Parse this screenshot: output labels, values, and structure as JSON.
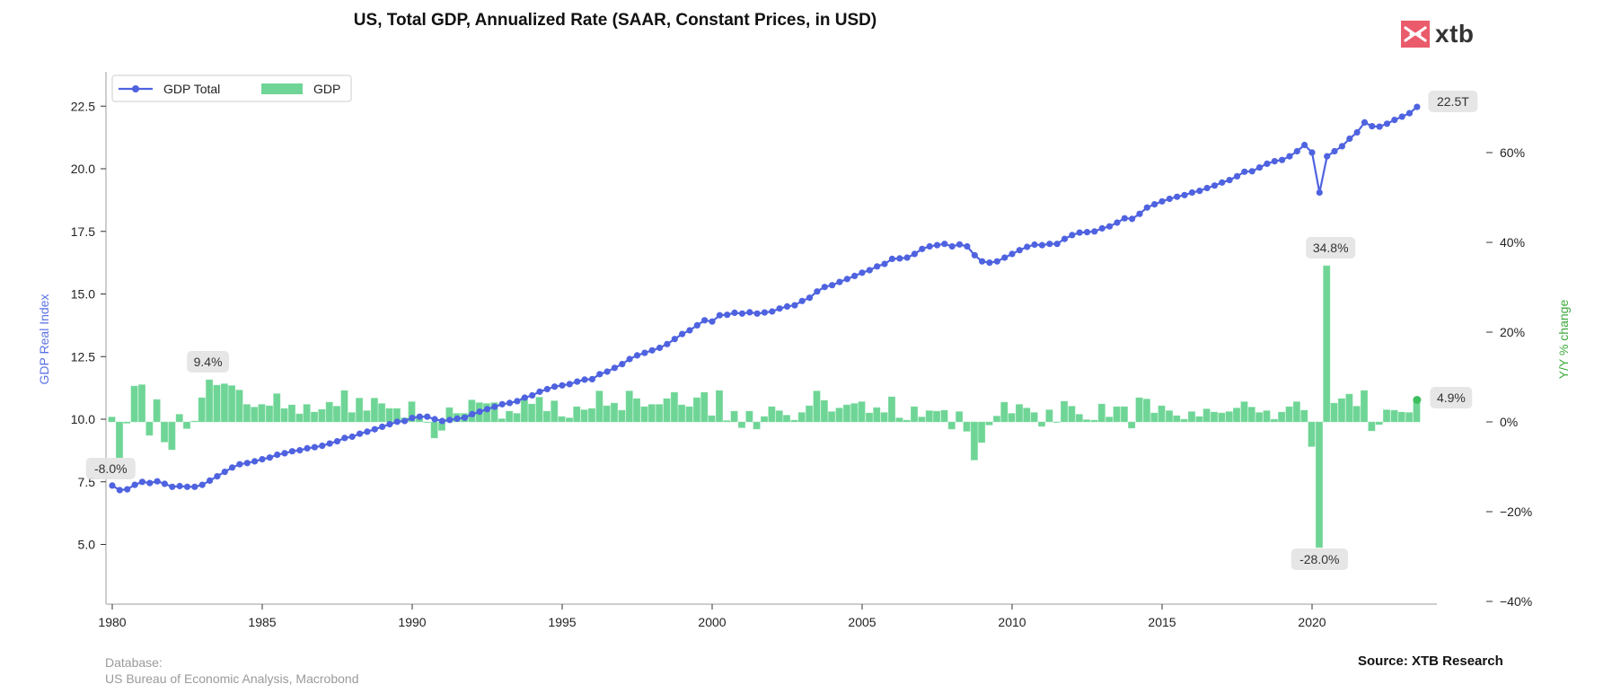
{
  "header": {
    "title": "US, Total GDP, Annualized Rate (SAAR, Constant Prices, in USD)",
    "logo_text": "xtb",
    "logo_icon": "xtb-x-icon",
    "logo_color": "#ea5b6b"
  },
  "footer": {
    "database_label": "Database:",
    "database_source": "US Bureau of Economic Analysis, Macrobond",
    "source": "Source: XTB Research"
  },
  "chart_data": {
    "type": "bar+line",
    "title": "US, Total GDP, Annualized Rate (SAAR, Constant Prices, in USD)",
    "xlabel": "",
    "ylabel_left": "GDP Real Index",
    "ylabel_right": "Y/Y % change",
    "x_ticks": [
      "1980",
      "1985",
      "1990",
      "1995",
      "2000",
      "2005",
      "2010",
      "2015",
      "2020"
    ],
    "y_left_ticks": [
      "5.0",
      "7.5",
      "10.0",
      "12.5",
      "15.0",
      "17.5",
      "20.0",
      "22.5"
    ],
    "y_right_ticks": [
      "−40%",
      "−20%",
      "0%",
      "20%",
      "40%",
      "60%"
    ],
    "y_left_range": [
      2.6,
      23.9
    ],
    "y_right_range": [
      -40.6,
      78
    ],
    "x_range": [
      1979.97,
      2023.95
    ],
    "grid": false,
    "legend": {
      "placement": "top-left",
      "entries": [
        "GDP Total",
        "GDP"
      ]
    },
    "colors": {
      "line": "#4f63e0",
      "bars": "#6fd596",
      "last_bar_dot": "#3dbf5f",
      "annotation_bg": "#e4e4e4"
    },
    "start_year": 1980,
    "frequency": "quarterly",
    "series": [
      {
        "name": "GDP Total",
        "axis": "left",
        "kind": "line",
        "values": [
          7.35,
          7.17,
          7.2,
          7.38,
          7.5,
          7.45,
          7.52,
          7.42,
          7.3,
          7.33,
          7.3,
          7.3,
          7.38,
          7.55,
          7.72,
          7.9,
          8.07,
          8.2,
          8.25,
          8.32,
          8.4,
          8.47,
          8.58,
          8.64,
          8.72,
          8.76,
          8.84,
          8.88,
          8.94,
          9.03,
          9.12,
          9.25,
          9.3,
          9.42,
          9.5,
          9.6,
          9.7,
          9.8,
          9.9,
          9.93,
          10.05,
          10.1,
          10.1,
          10.0,
          9.93,
          9.97,
          10.02,
          10.06,
          10.2,
          10.3,
          10.4,
          10.5,
          10.6,
          10.65,
          10.72,
          10.86,
          10.95,
          11.1,
          11.2,
          11.3,
          11.35,
          11.4,
          11.5,
          11.58,
          11.6,
          11.8,
          11.9,
          12.05,
          12.2,
          12.4,
          12.55,
          12.65,
          12.75,
          12.85,
          13.0,
          13.2,
          13.4,
          13.55,
          13.75,
          13.95,
          13.9,
          14.15,
          14.17,
          14.25,
          14.22,
          14.27,
          14.22,
          14.26,
          14.3,
          14.42,
          14.5,
          14.55,
          14.72,
          14.85,
          15.1,
          15.28,
          15.35,
          15.48,
          15.6,
          15.72,
          15.85,
          15.95,
          16.1,
          16.2,
          16.4,
          16.42,
          16.45,
          16.6,
          16.8,
          16.9,
          16.95,
          17.0,
          16.9,
          16.98,
          16.9,
          16.55,
          16.3,
          16.25,
          16.3,
          16.45,
          16.6,
          16.75,
          16.88,
          16.97,
          16.95,
          17.0,
          17.0,
          17.2,
          17.35,
          17.45,
          17.47,
          17.5,
          17.62,
          17.7,
          17.85,
          18.02,
          18.0,
          18.2,
          18.45,
          18.58,
          18.7,
          18.8,
          18.88,
          18.95,
          19.05,
          19.12,
          19.23,
          19.33,
          19.45,
          19.55,
          19.7,
          19.88,
          19.9,
          20.05,
          20.2,
          20.3,
          20.35,
          20.5,
          20.7,
          20.95,
          20.65,
          19.05,
          20.5,
          20.7,
          20.9,
          21.2,
          21.45,
          21.85,
          21.7,
          21.68,
          21.8,
          21.95,
          22.08,
          22.22,
          22.47
        ]
      },
      {
        "name": "GDP",
        "axis": "right",
        "kind": "bar",
        "unit": "%",
        "values": [
          1.1,
          -8.0,
          -0.3,
          8.0,
          8.3,
          -3.0,
          5.0,
          -4.5,
          -6.2,
          1.7,
          -1.5,
          0.2,
          5.4,
          9.4,
          8.2,
          8.5,
          8.1,
          7.1,
          3.9,
          3.3,
          3.9,
          3.6,
          6.3,
          3.0,
          3.8,
          1.8,
          3.9,
          2.2,
          2.8,
          4.4,
          3.5,
          7.0,
          2.1,
          5.3,
          2.5,
          5.3,
          4.1,
          3.0,
          3.0,
          0.9,
          4.5,
          1.3,
          0.0,
          -3.6,
          -1.9,
          3.2,
          1.9,
          1.9,
          4.9,
          4.3,
          4.1,
          4.3,
          0.7,
          2.4,
          1.9,
          5.5,
          4.0,
          5.5,
          2.4,
          4.7,
          1.2,
          0.9,
          3.4,
          2.7,
          3.0,
          6.9,
          3.6,
          4.2,
          2.6,
          6.9,
          5.2,
          3.4,
          3.9,
          3.9,
          5.2,
          6.6,
          3.8,
          3.4,
          5.4,
          6.6,
          1.4,
          7.0,
          0.3,
          2.4,
          -1.3,
          2.4,
          -1.6,
          1.2,
          3.4,
          2.5,
          1.5,
          0.4,
          2.1,
          3.6,
          6.9,
          4.8,
          2.3,
          3.1,
          3.8,
          4.1,
          4.5,
          2.0,
          3.2,
          2.1,
          5.6,
          0.9,
          0.4,
          3.4,
          1.1,
          2.5,
          2.4,
          2.6,
          -1.6,
          2.3,
          -2.1,
          -8.5,
          -4.6,
          -0.7,
          1.3,
          4.4,
          1.9,
          3.9,
          3.1,
          2.1,
          -1.0,
          2.7,
          -0.1,
          4.6,
          3.5,
          1.7,
          0.5,
          0.4,
          4.0,
          1.1,
          3.4,
          3.4,
          -1.4,
          5.4,
          5.1,
          2.0,
          3.6,
          2.5,
          1.4,
          0.6,
          2.3,
          1.2,
          2.9,
          2.2,
          2.0,
          2.3,
          3.1,
          4.5,
          3.3,
          2.1,
          2.5,
          0.6,
          2.2,
          3.4,
          4.5,
          2.6,
          -5.5,
          -28.0,
          34.8,
          4.2,
          5.2,
          6.2,
          3.5,
          7.0,
          -2.0,
          -0.6,
          2.7,
          2.6,
          2.2,
          2.1,
          4.9
        ]
      }
    ],
    "annotations": [
      {
        "text": "-8.0%",
        "series": "GDP",
        "index": 1
      },
      {
        "text": "9.4%",
        "series": "GDP",
        "index": 13
      },
      {
        "text": "34.8%",
        "series": "GDP",
        "index": 162
      },
      {
        "text": "-28.0%",
        "series": "GDP",
        "index": 161
      },
      {
        "text": "4.9%",
        "series": "GDP",
        "index": 174
      },
      {
        "text": "22.5T",
        "series": "GDP Total",
        "index": 174
      }
    ]
  }
}
